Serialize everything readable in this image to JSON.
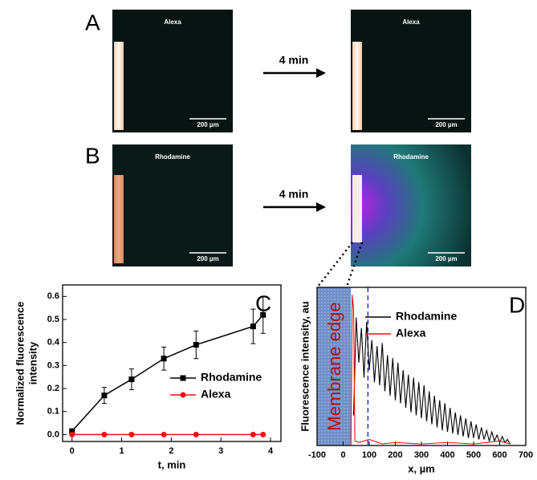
{
  "panels": [
    "A",
    "B",
    "C",
    "D"
  ],
  "images": [
    {
      "label": "Alexa",
      "scale": "200 µm"
    },
    {
      "label": "Alexa",
      "scale": "200 µm"
    },
    {
      "label": "Rhodamine",
      "scale": "200 µm"
    },
    {
      "label": "Rhodamine",
      "scale": "200 µm"
    }
  ],
  "arrows": [
    "4 min",
    "4 min"
  ],
  "chart_data": [
    {
      "type": "line",
      "xlabel": "t, min",
      "ylabel": [
        "Normalized fluorescence",
        "intensity"
      ],
      "xlim": [
        -0.19,
        4.21
      ],
      "ylim": [
        -0.03,
        0.65
      ],
      "xticks": [
        0,
        1,
        2,
        3,
        4
      ],
      "yticks": [
        {
          "value": 0,
          "label": "0.0"
        },
        0.1,
        0.2,
        0.3,
        0.4,
        0.5,
        0.6
      ],
      "series": [
        {
          "name": "Rhodamine",
          "color": "#000000",
          "marker": "square",
          "x": [
            0,
            0.65,
            1.2,
            1.85,
            2.5,
            3.65,
            3.85
          ],
          "values": [
            0.015,
            0.17,
            0.24,
            0.33,
            0.39,
            0.47,
            0.52
          ],
          "errors": [
            0,
            0.035,
            0.045,
            0.05,
            0.06,
            0.075,
            0.08
          ]
        },
        {
          "name": "Alexa",
          "color": "#ee1111",
          "marker": "circle",
          "x": [
            0,
            0.65,
            1.2,
            1.85,
            2.5,
            3.65,
            3.85
          ],
          "values": [
            0,
            0,
            0,
            0,
            0,
            0,
            0
          ]
        }
      ]
    },
    {
      "type": "line",
      "xlabel": "x, µm",
      "ylabel": "Fluorescence intensity, au",
      "annotation": "Membrane edge",
      "xlim": [
        -100,
        700
      ],
      "ylim": [
        0,
        1.05
      ],
      "xticks": [
        -100,
        0,
        100,
        200,
        300,
        400,
        500,
        600,
        700
      ],
      "series": [
        {
          "name": "Rhodamine",
          "color": "#000000",
          "x": [
            40,
            50,
            60,
            70,
            80,
            90,
            100,
            110,
            120,
            130,
            140,
            150,
            160,
            170,
            180,
            190,
            200,
            210,
            220,
            230,
            240,
            250,
            260,
            270,
            280,
            290,
            300,
            310,
            320,
            330,
            340,
            350,
            360,
            370,
            380,
            390,
            400,
            410,
            420,
            430,
            440,
            450,
            460,
            470,
            480,
            490,
            500,
            510,
            520,
            530,
            540,
            550,
            560,
            570,
            580,
            590,
            600,
            610,
            620,
            630,
            640
          ],
          "values": [
            0.2,
            0.85,
            0.55,
            0.78,
            0.45,
            0.82,
            0.5,
            0.7,
            0.42,
            0.66,
            0.4,
            0.68,
            0.36,
            0.6,
            0.33,
            0.58,
            0.3,
            0.55,
            0.28,
            0.5,
            0.25,
            0.47,
            0.22,
            0.45,
            0.2,
            0.42,
            0.18,
            0.4,
            0.16,
            0.36,
            0.14,
            0.33,
            0.12,
            0.3,
            0.1,
            0.28,
            0.09,
            0.25,
            0.08,
            0.22,
            0.07,
            0.2,
            0.06,
            0.18,
            0.05,
            0.16,
            0.05,
            0.14,
            0.04,
            0.12,
            0.04,
            0.1,
            0.03,
            0.09,
            0.03,
            0.07,
            0.02,
            0.06,
            0.02,
            0.04,
            0.01
          ]
        },
        {
          "name": "Alexa",
          "color": "#ee1111",
          "x": [
            30,
            35,
            40,
            45,
            60,
            100,
            150,
            200,
            300,
            400,
            500,
            600,
            640
          ],
          "values": [
            0,
            1.0,
            0.9,
            0.03,
            0.02,
            0.04,
            0.01,
            0.02,
            0.01,
            0.02,
            0.01,
            0.03,
            0.01
          ]
        }
      ]
    }
  ]
}
